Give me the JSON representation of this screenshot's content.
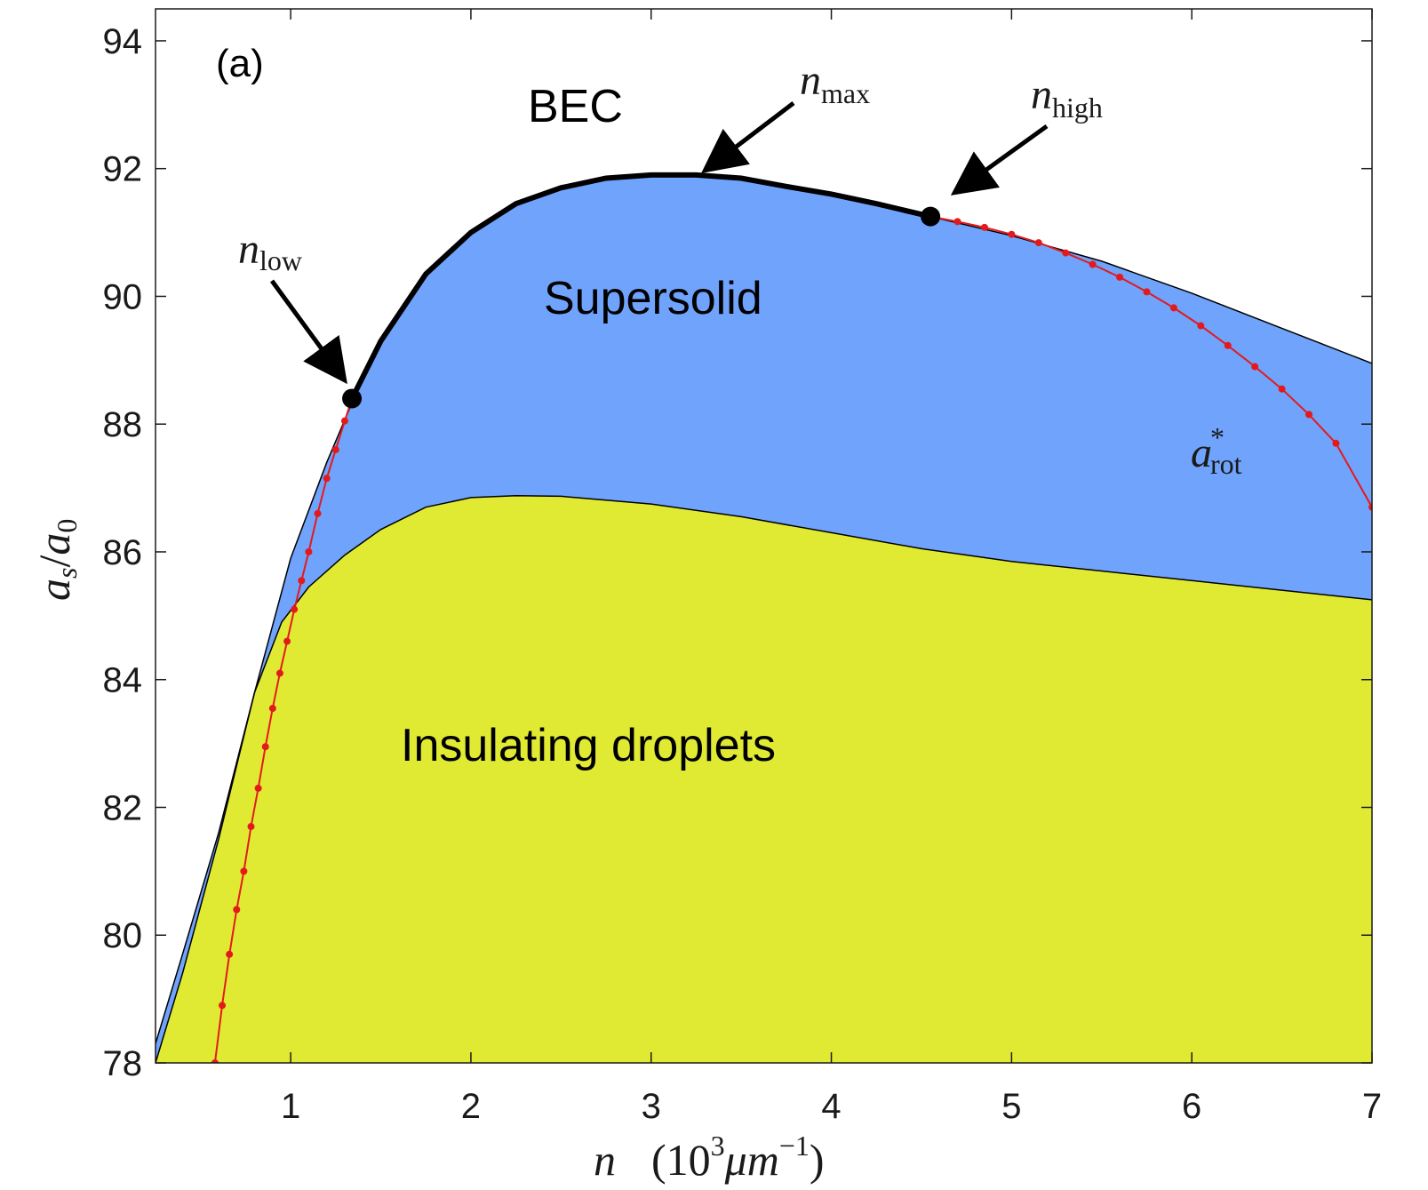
{
  "chart_data": {
    "type": "area",
    "panel_label": "(a)",
    "xlabel": {
      "var": "n",
      "open": "(10",
      "exp": "3",
      "unit": "μm",
      "unit_exp": "−1",
      "close": ")"
    },
    "ylabel": {
      "a": "a",
      "s": "s",
      "slash": "/",
      "a0": "a",
      "zero": "0"
    },
    "xlim": [
      0.25,
      7
    ],
    "ylim": [
      78,
      94.5
    ],
    "xticks": [
      1,
      2,
      3,
      4,
      5,
      6,
      7
    ],
    "yticks": [
      78,
      80,
      82,
      84,
      86,
      88,
      90,
      92,
      94
    ],
    "x_tick_labels": [
      "1",
      "2",
      "3",
      "4",
      "5",
      "6",
      "7"
    ],
    "y_tick_labels": [
      "78",
      "80",
      "82",
      "84",
      "86",
      "88",
      "90",
      "92",
      "94"
    ],
    "colors": {
      "bec": "#ffffff",
      "supersolid": "#6fa3fc",
      "droplets": "#e1ea33",
      "boundary": "#000000",
      "arot": "#e31a1c",
      "text": "#000000"
    },
    "regions": [
      {
        "name": "BEC",
        "label": "BEC"
      },
      {
        "name": "supersolid",
        "label": "Supersolid"
      },
      {
        "name": "droplets",
        "label": "Insulating droplets"
      }
    ],
    "series": [
      {
        "role": "upper_boundary",
        "x": [
          0.25,
          0.4,
          0.6,
          0.8,
          1.0,
          1.2,
          1.35,
          1.5,
          1.75,
          2.0,
          2.25,
          2.5,
          2.75,
          3.0,
          3.25,
          3.5,
          3.75,
          4.0,
          4.25,
          4.55,
          5.0,
          5.5,
          6.0,
          6.5,
          7.0
        ],
        "y": [
          78.3,
          79.7,
          81.6,
          83.8,
          85.9,
          87.4,
          88.4,
          89.3,
          90.35,
          91.0,
          91.45,
          91.7,
          91.85,
          91.9,
          91.9,
          91.85,
          91.72,
          91.6,
          91.45,
          91.25,
          90.95,
          90.55,
          90.05,
          89.5,
          88.95
        ]
      },
      {
        "role": "lower_boundary",
        "x": [
          0.25,
          0.4,
          0.6,
          0.8,
          0.95,
          1.1,
          1.3,
          1.5,
          1.75,
          2.0,
          2.25,
          2.5,
          3.0,
          3.5,
          4.0,
          4.5,
          5.0,
          5.5,
          6.0,
          6.5,
          7.0
        ],
        "y": [
          78.0,
          79.4,
          81.5,
          83.8,
          84.9,
          85.45,
          85.95,
          86.35,
          86.7,
          86.85,
          86.88,
          86.87,
          86.75,
          86.55,
          86.3,
          86.05,
          85.85,
          85.7,
          85.55,
          85.4,
          85.25
        ]
      },
      {
        "role": "transition_line",
        "x": [
          1.34,
          1.5,
          1.75,
          2.0,
          2.25,
          2.5,
          2.75,
          3.0,
          3.25,
          3.5,
          3.75,
          4.0,
          4.25,
          4.55
        ],
        "y": [
          88.4,
          89.3,
          90.35,
          91.0,
          91.45,
          91.7,
          91.85,
          91.9,
          91.9,
          91.85,
          91.72,
          91.6,
          91.45,
          91.25
        ]
      },
      {
        "name": "a*rot",
        "role": "a_rot_star",
        "x": [
          0.58,
          0.62,
          0.66,
          0.7,
          0.74,
          0.78,
          0.82,
          0.86,
          0.9,
          0.94,
          0.98,
          1.02,
          1.06,
          1.1,
          1.15,
          1.2,
          1.25,
          1.3,
          1.34,
          4.55,
          4.7,
          4.85,
          5.0,
          5.15,
          5.3,
          5.45,
          5.6,
          5.75,
          5.9,
          6.05,
          6.2,
          6.35,
          6.5,
          6.65,
          6.8,
          7.0
        ],
        "y": [
          78.0,
          78.9,
          79.7,
          80.4,
          81.0,
          81.7,
          82.3,
          82.95,
          83.55,
          84.1,
          84.6,
          85.1,
          85.55,
          86.0,
          86.6,
          87.15,
          87.6,
          88.05,
          88.4,
          91.25,
          91.17,
          91.08,
          90.97,
          90.84,
          90.68,
          90.5,
          90.3,
          90.07,
          89.82,
          89.54,
          89.23,
          88.9,
          88.55,
          88.15,
          87.7,
          86.7
        ]
      }
    ],
    "points": [
      {
        "name": "n_low",
        "x": 1.34,
        "y": 88.4
      },
      {
        "name": "n_high",
        "x": 4.55,
        "y": 91.25
      }
    ],
    "annotations": [
      {
        "name": "n_low",
        "var": "n",
        "sub": "low"
      },
      {
        "name": "n_max",
        "var": "n",
        "sub": "max"
      },
      {
        "name": "n_high",
        "var": "n",
        "sub": "high"
      },
      {
        "name": "a_rot",
        "var": "a",
        "sub": "rot",
        "sup": "*"
      }
    ]
  }
}
